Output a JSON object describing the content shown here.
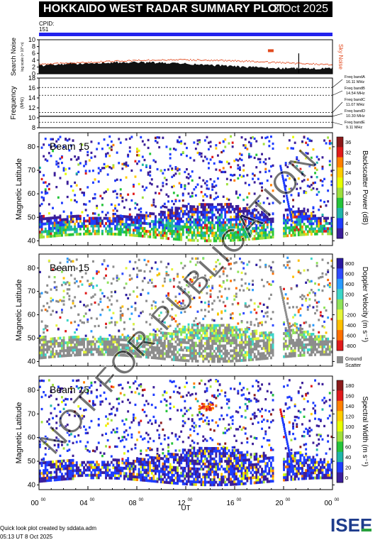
{
  "header": {
    "title": "HOKKAIDO WEST RADAR SUMMARY PLOT",
    "date": "3 Oct 2025",
    "cpid_label": "CPID:",
    "cpid_value": "151"
  },
  "chart_data": [
    {
      "type": "area",
      "panel": "search-noise",
      "ylabel": "Search Noise",
      "ylabel_sub": "log scale (× 10^-n)",
      "right_label": "Sky Noise",
      "ylim": [
        0,
        10
      ],
      "yticks": [
        "10",
        "8",
        "6",
        "4",
        "2",
        "0"
      ]
    },
    {
      "type": "line",
      "panel": "frequency",
      "ylabel": "Frequency",
      "ylabel_sub": "(MHz)",
      "ylim": [
        8,
        18
      ],
      "yticks": [
        "18",
        "16",
        "14",
        "12",
        "10",
        "8"
      ],
      "bands": [
        {
          "name": "Freq bandA",
          "freq": "16.11 MHz",
          "value": 16.11
        },
        {
          "name": "Freq bandB",
          "freq": "14.54 MHz",
          "value": 14.54
        },
        {
          "name": "Freq bandC",
          "freq": "11.07 MHz",
          "value": 11.07
        },
        {
          "name": "Freq bandD",
          "freq": "10.30 MHz",
          "value": 10.3
        },
        {
          "name": "Freq bandE",
          "freq": "9.11 MHz",
          "value": 9.11
        }
      ]
    },
    {
      "type": "heatmap",
      "panel": "power",
      "beam": "Beam 15",
      "ylabel": "Magnetic Latitude",
      "ylim": [
        38,
        86
      ],
      "yticks": [
        "80",
        "70",
        "60",
        "50",
        "40"
      ],
      "colorbar_label": "Backscatter Power (dB)",
      "colorbar_ticks": [
        "36",
        "32",
        "28",
        "24",
        "20",
        "16",
        "12",
        "8",
        "4",
        "0"
      ],
      "colors": [
        "#8b1a1a",
        "#e01b1b",
        "#ff7f00",
        "#ffcc00",
        "#e6ff00",
        "#9fe03c",
        "#25c43a",
        "#1fb5a8",
        "#1e3cff",
        "#3b1e9a"
      ]
    },
    {
      "type": "heatmap",
      "panel": "velocity",
      "beam": "Beam 15",
      "ylabel": "Magnetic Latitude",
      "ylim": [
        38,
        86
      ],
      "yticks": [
        "80",
        "70",
        "60",
        "50",
        "40"
      ],
      "colorbar_label": "Doppler Velocity (m s⁻¹)",
      "colorbar_ticks": [
        "800",
        "600",
        "400",
        "200",
        "0",
        "-200",
        "-400",
        "-600",
        "-800"
      ],
      "ground_label_1": "Ground",
      "ground_label_2": "Scatter",
      "colors": [
        "#2a1aa0",
        "#2f4bff",
        "#2a9bff",
        "#3cd6c8",
        "#8fe35a",
        "#e4f53a",
        "#ffc000",
        "#ff7000",
        "#e01b1b"
      ]
    },
    {
      "type": "heatmap",
      "panel": "width",
      "beam": "Beam 15",
      "ylabel": "Magnetic Latitude",
      "ylim": [
        38,
        86
      ],
      "yticks": [
        "80",
        "70",
        "60",
        "50",
        "40"
      ],
      "colorbar_label": "Spectral Width (m s⁻¹)",
      "colorbar_ticks": [
        "180",
        "160",
        "140",
        "120",
        "100",
        "80",
        "60",
        "40",
        "20",
        "0"
      ],
      "colors": [
        "#8b1a1a",
        "#e01b1b",
        "#ff7f00",
        "#ffcc00",
        "#e6ff00",
        "#9fe03c",
        "#25c43a",
        "#1fb5a8",
        "#1e3cff",
        "#3b1e9a"
      ]
    }
  ],
  "xaxis": {
    "label": "UT",
    "ticks": [
      {
        "h": "00",
        "m": "00"
      },
      {
        "h": "04",
        "m": "00"
      },
      {
        "h": "08",
        "m": "00"
      },
      {
        "h": "12",
        "m": "00"
      },
      {
        "h": "16",
        "m": "00"
      },
      {
        "h": "20",
        "m": "00"
      },
      {
        "h": "00",
        "m": "00"
      }
    ]
  },
  "watermark": "NOT FOR PUBLICATION",
  "footer": {
    "line1": "Quick look plot created by sddata.adm",
    "line2": "05:13 UT  8 Oct 2025"
  },
  "logo": {
    "text": "ISEE",
    "colors": [
      "#1e3c8c",
      "#28a03c"
    ]
  }
}
